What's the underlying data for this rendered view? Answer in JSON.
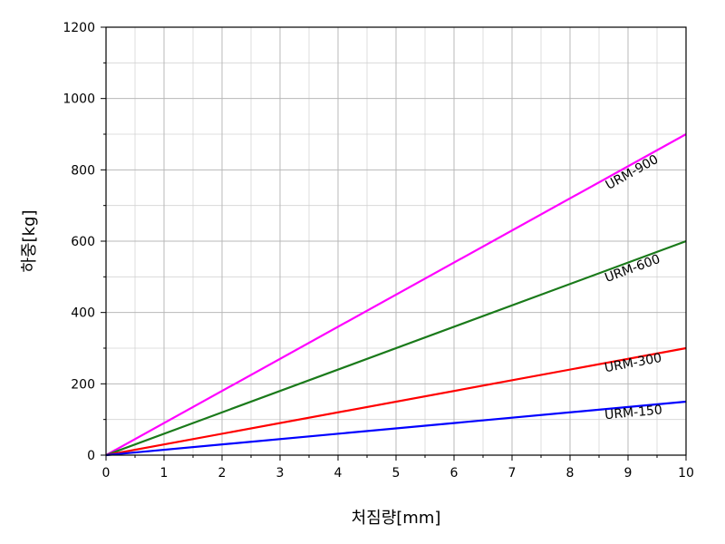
{
  "chart_data": {
    "type": "line",
    "title": "",
    "xlabel": "처짐량[mm]",
    "ylabel": "하중[kg]",
    "xlim": [
      0,
      10
    ],
    "ylim": [
      0,
      1200
    ],
    "xticks": [
      0,
      1,
      2,
      3,
      4,
      5,
      6,
      7,
      8,
      9,
      10
    ],
    "yticks": [
      0,
      200,
      400,
      600,
      800,
      1000,
      1200
    ],
    "grid": true,
    "series": [
      {
        "name": "URM-900",
        "color": "#ff00ff",
        "x": [
          0,
          10
        ],
        "y": [
          0,
          900
        ]
      },
      {
        "name": "URM-600",
        "color": "#1a7a1a",
        "x": [
          0,
          10
        ],
        "y": [
          0,
          600
        ]
      },
      {
        "name": "URM-300",
        "color": "#ff0000",
        "x": [
          0,
          10
        ],
        "y": [
          0,
          300
        ]
      },
      {
        "name": "URM-150",
        "color": "#0000ff",
        "x": [
          0,
          10
        ],
        "y": [
          0,
          150
        ]
      }
    ]
  }
}
